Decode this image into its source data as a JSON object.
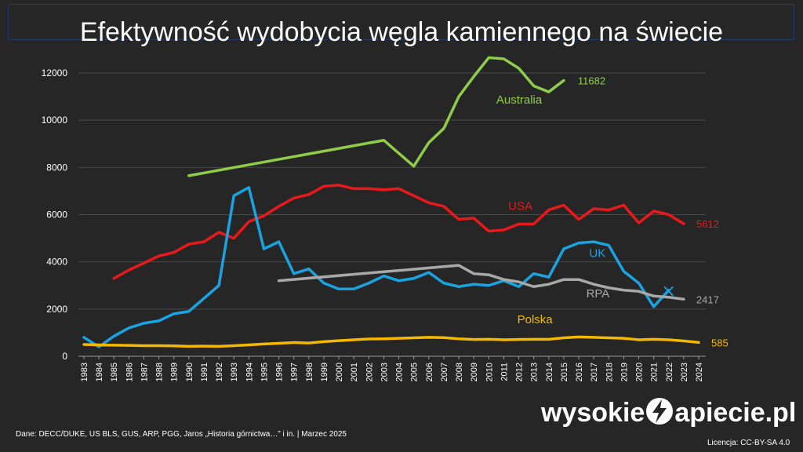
{
  "title": "Efektywność wydobycia węgla kamiennego na świecie",
  "source": "Dane: DECC/DUKE, US BLS, GUS, ARP, PGG, Jaros „Historia górnictwa…” i in.  |  Marzec 2025",
  "license": "Licencja: CC-BY-SA 4.0",
  "brand": {
    "left": "wysokie",
    "right": "apiecie.pl",
    "logo_letter": "N"
  },
  "chart_data": {
    "type": "line",
    "title": "Efektywność wydobycia węgla kamiennego na świecie",
    "ylim": [
      0,
      12500
    ],
    "yticks": [
      "0",
      "2000",
      "4000",
      "6000",
      "8000",
      "10000",
      "12000"
    ],
    "x": [
      "1983",
      "1984",
      "1985",
      "1986",
      "1987",
      "1988",
      "1989",
      "1990",
      "1991",
      "1992",
      "1993",
      "1994",
      "1995",
      "1996",
      "1997",
      "1998",
      "1999",
      "2000",
      "2001",
      "2002",
      "2003",
      "2004",
      "2005",
      "2006",
      "2007",
      "2008",
      "2009",
      "2010",
      "2011",
      "2012",
      "2013",
      "2014",
      "2015",
      "2016",
      "2017",
      "2018",
      "2019",
      "2020",
      "2021",
      "2022",
      "2023",
      "2024"
    ],
    "grid": true,
    "series": [
      {
        "name": "Australia",
        "color": "#8fcc4a",
        "end_label": "11682",
        "values": [
          null,
          null,
          null,
          null,
          null,
          null,
          null,
          7650,
          null,
          null,
          null,
          null,
          null,
          null,
          null,
          null,
          null,
          null,
          null,
          null,
          9150,
          null,
          8050,
          9050,
          9650,
          11000,
          11850,
          12650,
          12600,
          12200,
          11450,
          11200,
          11682,
          null,
          null,
          null,
          null,
          null,
          null,
          null,
          null,
          null
        ]
      },
      {
        "name": "USA",
        "color": "#e8191a",
        "end_label": "5612",
        "values": [
          null,
          null,
          3300,
          3650,
          3950,
          4250,
          4400,
          4750,
          4850,
          5250,
          5000,
          5700,
          5950,
          6350,
          6700,
          6850,
          7200,
          7250,
          7100,
          7100,
          7050,
          7100,
          6800,
          6500,
          6350,
          5800,
          5850,
          5300,
          5350,
          5600,
          5600,
          6200,
          6400,
          5800,
          6250,
          6200,
          6400,
          5650,
          6150,
          6000,
          5612,
          null
        ]
      },
      {
        "name": "UK",
        "color": "#1aa3e0",
        "end_label": "",
        "values": [
          800,
          400,
          850,
          1200,
          1400,
          1500,
          1800,
          1900,
          2450,
          3000,
          6800,
          7150,
          4550,
          4850,
          3500,
          3700,
          3100,
          2850,
          2850,
          3100,
          3400,
          3200,
          3300,
          3550,
          3100,
          2950,
          3050,
          3000,
          3200,
          2950,
          3500,
          3350,
          4550,
          4800,
          4850,
          4700,
          3600,
          3100,
          2100,
          2800,
          null,
          null
        ]
      },
      {
        "name": "RPA",
        "color": "#a8a8a8",
        "end_label": "2417",
        "values": [
          null,
          null,
          null,
          null,
          null,
          null,
          null,
          null,
          null,
          null,
          null,
          null,
          null,
          3200,
          null,
          null,
          null,
          null,
          null,
          null,
          null,
          null,
          null,
          null,
          null,
          3850,
          3500,
          3450,
          3250,
          3150,
          2950,
          3050,
          3250,
          3250,
          3050,
          2900,
          2800,
          2750,
          2550,
          2500,
          2417,
          null
        ]
      },
      {
        "name": "Polska",
        "color": "#f5b800",
        "end_label": "585",
        "values": [
          500,
          480,
          470,
          460,
          450,
          450,
          440,
          420,
          430,
          420,
          450,
          480,
          520,
          550,
          580,
          560,
          620,
          660,
          700,
          730,
          740,
          760,
          780,
          800,
          790,
          740,
          710,
          720,
          700,
          710,
          720,
          720,
          780,
          820,
          800,
          780,
          760,
          700,
          720,
          700,
          650,
          585
        ]
      }
    ],
    "annotations": [
      {
        "text": "×",
        "x": "2022",
        "y": 2800,
        "color": "#1aa3e0"
      }
    ]
  }
}
